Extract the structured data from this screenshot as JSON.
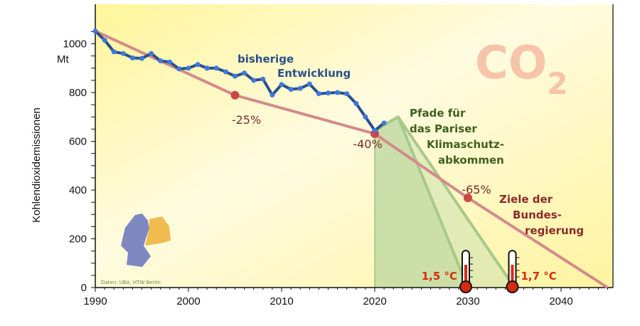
{
  "chart_data": {
    "type": "line",
    "ylabel": "Kohlendioxidemissionen",
    "yunit": "Mt",
    "xlim": [
      1990,
      2045
    ],
    "ylim": [
      0,
      1100
    ],
    "xticks": [
      1990,
      2000,
      2010,
      2020,
      2030,
      2040
    ],
    "yticks": [
      0,
      200,
      400,
      600,
      800,
      1000
    ],
    "title_graphic": "CO2",
    "source": "Daten: UBA, HTW Berlin",
    "series": [
      {
        "name": "bisherige Entwicklung",
        "color": "#2a5aa8",
        "x": [
          1990,
          1991,
          1992,
          1993,
          1994,
          1995,
          1996,
          1997,
          1998,
          1999,
          2000,
          2001,
          2002,
          2003,
          2004,
          2005,
          2006,
          2007,
          2008,
          2009,
          2010,
          2011,
          2012,
          2013,
          2014,
          2015,
          2016,
          2017,
          2018,
          2019,
          2020,
          2021
        ],
        "y": [
          1052,
          1015,
          967,
          960,
          942,
          940,
          960,
          930,
          925,
          897,
          900,
          915,
          900,
          900,
          885,
          867,
          880,
          850,
          855,
          790,
          833,
          813,
          817,
          835,
          795,
          798,
          800,
          795,
          755,
          700,
          644,
          675
        ]
      },
      {
        "name": "Ziele der Bundesregierung",
        "color": "#d48a8a",
        "x": [
          1990,
          2005,
          2020,
          2030,
          2045
        ],
        "y": [
          1052,
          789,
          631,
          368,
          0
        ],
        "markers": [
          {
            "x": 2005,
            "y": 789,
            "label": "-25%"
          },
          {
            "x": 2020,
            "y": 631,
            "label": "-40%"
          },
          {
            "x": 2030,
            "y": 368,
            "label": "-65%"
          }
        ]
      },
      {
        "name": "Pfade für das Pariser Klimaschutzabkommen",
        "color": "#a8c98a",
        "paths": [
          {
            "label": "1,5 °C",
            "x": [
              2020,
              2022.5,
              2030
            ],
            "y": [
              644,
              700,
              0
            ]
          },
          {
            "label": "1,7 °C",
            "x": [
              2020,
              2022.5,
              2035
            ],
            "y": [
              644,
              700,
              0
            ]
          }
        ]
      }
    ],
    "annotations": {
      "history": [
        "bisherige",
        "Entwicklung"
      ],
      "paris": [
        "Pfade für",
        "das Pariser",
        "Klimaschutz-",
        "abkommen"
      ],
      "targets": [
        "Ziele der",
        "Bundes-",
        "regierung"
      ]
    }
  }
}
